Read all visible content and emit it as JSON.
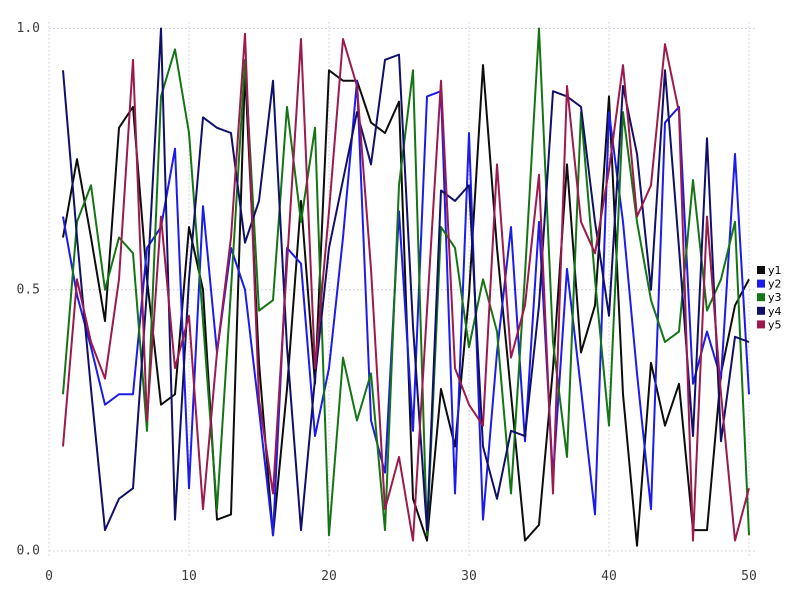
{
  "chart_data": {
    "type": "line",
    "title": "",
    "xlabel": "",
    "ylabel": "",
    "xlim": [
      0,
      50
    ],
    "ylim": [
      0.0,
      1.0
    ],
    "x_ticks": [
      0,
      10,
      20,
      30,
      40,
      50
    ],
    "x_tick_labels": [
      "0",
      "10",
      "20",
      "30",
      "40",
      "50"
    ],
    "y_ticks": [
      0.0,
      0.5,
      1.0
    ],
    "y_tick_labels": [
      "0.0",
      "0.5",
      "1.0"
    ],
    "grid": "dotted",
    "legend_position": "right",
    "background_color": "#ffffff",
    "grid_color": "#c9c9d6",
    "tick_label_color": "#3d3d3d",
    "x": [
      1,
      2,
      3,
      4,
      5,
      6,
      7,
      8,
      9,
      10,
      11,
      12,
      13,
      14,
      15,
      16,
      17,
      18,
      19,
      20,
      21,
      22,
      23,
      24,
      25,
      26,
      27,
      28,
      29,
      30,
      31,
      32,
      33,
      34,
      35,
      36,
      37,
      38,
      39,
      40,
      41,
      42,
      43,
      44,
      45,
      46,
      47,
      48,
      49,
      50
    ],
    "series": [
      {
        "name": "y1",
        "color": "#0d0d0d",
        "values": [
          0.6,
          0.75,
          0.6,
          0.44,
          0.81,
          0.85,
          0.52,
          0.28,
          0.3,
          0.62,
          0.5,
          0.06,
          0.07,
          0.92,
          0.36,
          0.03,
          0.31,
          0.67,
          0.32,
          0.92,
          0.9,
          0.9,
          0.82,
          0.8,
          0.86,
          0.1,
          0.02,
          0.31,
          0.2,
          0.49,
          0.93,
          0.58,
          0.3,
          0.02,
          0.05,
          0.35,
          0.74,
          0.38,
          0.47,
          0.87,
          0.3,
          0.01,
          0.36,
          0.24,
          0.32,
          0.04,
          0.04,
          0.34,
          0.47,
          0.52
        ]
      },
      {
        "name": "y2",
        "color": "#1b1bee",
        "values": [
          0.64,
          0.49,
          0.39,
          0.28,
          0.3,
          0.3,
          0.58,
          0.62,
          0.77,
          0.12,
          0.66,
          0.38,
          0.58,
          0.5,
          0.27,
          0.03,
          0.58,
          0.55,
          0.22,
          0.35,
          0.6,
          0.9,
          0.25,
          0.15,
          0.65,
          0.23,
          0.87,
          0.88,
          0.11,
          0.8,
          0.06,
          0.38,
          0.62,
          0.21,
          0.63,
          0.14,
          0.54,
          0.31,
          0.07,
          0.84,
          0.63,
          0.34,
          0.08,
          0.82,
          0.85,
          0.32,
          0.42,
          0.33,
          0.76,
          0.3
        ]
      },
      {
        "name": "y3",
        "color": "#157515",
        "values": [
          0.3,
          0.63,
          0.7,
          0.5,
          0.6,
          0.57,
          0.23,
          0.87,
          0.96,
          0.8,
          0.44,
          0.08,
          0.5,
          0.94,
          0.46,
          0.48,
          0.85,
          0.63,
          0.81,
          0.03,
          0.37,
          0.25,
          0.34,
          0.04,
          0.7,
          0.92,
          0.03,
          0.62,
          0.58,
          0.39,
          0.52,
          0.42,
          0.11,
          0.53,
          1.0,
          0.4,
          0.18,
          0.84,
          0.52,
          0.24,
          0.84,
          0.63,
          0.48,
          0.4,
          0.42,
          0.71,
          0.46,
          0.52,
          0.63,
          0.03
        ]
      },
      {
        "name": "y4",
        "color": "#10106a",
        "values": [
          0.92,
          0.6,
          0.31,
          0.04,
          0.1,
          0.12,
          0.5,
          1.0,
          0.06,
          0.52,
          0.83,
          0.81,
          0.8,
          0.59,
          0.67,
          0.9,
          0.39,
          0.04,
          0.33,
          0.58,
          0.71,
          0.84,
          0.74,
          0.94,
          0.95,
          0.43,
          0.04,
          0.69,
          0.67,
          0.7,
          0.2,
          0.1,
          0.23,
          0.22,
          0.47,
          0.88,
          0.87,
          0.85,
          0.63,
          0.45,
          0.89,
          0.76,
          0.5,
          0.92,
          0.58,
          0.22,
          0.79,
          0.21,
          0.41,
          0.4
        ]
      },
      {
        "name": "y5",
        "color": "#9c1a4e",
        "values": [
          0.2,
          0.52,
          0.4,
          0.33,
          0.52,
          0.94,
          0.25,
          0.64,
          0.35,
          0.45,
          0.08,
          0.38,
          0.6,
          0.99,
          0.29,
          0.11,
          0.55,
          0.98,
          0.35,
          0.65,
          0.98,
          0.89,
          0.54,
          0.08,
          0.18,
          0.02,
          0.46,
          0.9,
          0.35,
          0.28,
          0.24,
          0.74,
          0.37,
          0.47,
          0.72,
          0.11,
          0.89,
          0.63,
          0.57,
          0.73,
          0.93,
          0.64,
          0.7,
          0.97,
          0.84,
          0.02,
          0.64,
          0.3,
          0.02,
          0.12
        ]
      }
    ],
    "legend_entries": [
      "y1",
      "y2",
      "y3",
      "y4",
      "y5"
    ]
  },
  "layout_note": ""
}
